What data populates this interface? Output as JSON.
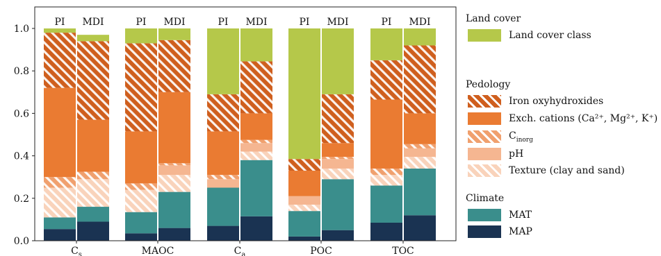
{
  "chart_data": {
    "type": "bar",
    "stacked": true,
    "categories": [
      "Cs",
      "MAOC",
      "Ca",
      "POC",
      "TOC"
    ],
    "category_labels": [
      {
        "main": "C",
        "sub": "s"
      },
      {
        "main": "MAOC",
        "sub": ""
      },
      {
        "main": "C",
        "sub": "a"
      },
      {
        "main": "POC",
        "sub": ""
      },
      {
        "main": "TOC",
        "sub": ""
      }
    ],
    "bar_labels": [
      "PI",
      "MDI"
    ],
    "ylim": [
      0,
      1
    ],
    "yticks": [
      "0.0",
      "0.2",
      "0.4",
      "0.6",
      "0.8",
      "1.0"
    ],
    "grid": false,
    "legend_position": "right",
    "series_order": [
      "MAP",
      "MAT",
      "Texture",
      "pH",
      "Cinorg",
      "Exch",
      "Iron",
      "Land"
    ],
    "series": {
      "MAP": {
        "color": "#1a3352",
        "hatch": false
      },
      "MAT": {
        "color": "#3a8e8c",
        "hatch": false
      },
      "Texture": {
        "color": "#f9d3bb",
        "hatch": true
      },
      "pH": {
        "color": "#f5b691",
        "hatch": false
      },
      "Cinorg": {
        "color": "#f0a06e",
        "hatch": true
      },
      "Exch": {
        "color": "#ea7b32",
        "hatch": false
      },
      "Iron": {
        "color": "#cf5f1e",
        "hatch": true
      },
      "Land": {
        "color": "#b5c84a",
        "hatch": false
      }
    },
    "bars": [
      {
        "category": "Cs",
        "label": "PI",
        "values": {
          "MAP": 0.055,
          "MAT": 0.055,
          "Texture": 0.14,
          "pH": 0.0,
          "Cinorg": 0.05,
          "Exch": 0.42,
          "Iron": 0.26,
          "Land": 0.02
        }
      },
      {
        "category": "Cs",
        "label": "MDI",
        "values": {
          "MAP": 0.09,
          "MAT": 0.07,
          "Texture": 0.13,
          "pH": 0.0,
          "Cinorg": 0.035,
          "Exch": 0.245,
          "Iron": 0.37,
          "Land": 0.03
        }
      },
      {
        "category": "MAOC",
        "label": "PI",
        "values": {
          "MAP": 0.035,
          "MAT": 0.1,
          "Texture": 0.105,
          "pH": 0.0,
          "Cinorg": 0.03,
          "Exch": 0.245,
          "Iron": 0.415,
          "Land": 0.07
        }
      },
      {
        "category": "MAOC",
        "label": "MDI",
        "values": {
          "MAP": 0.06,
          "MAT": 0.17,
          "Texture": 0.08,
          "pH": 0.045,
          "Cinorg": 0.01,
          "Exch": 0.335,
          "Iron": 0.245,
          "Land": 0.055
        }
      },
      {
        "category": "Ca",
        "label": "PI",
        "values": {
          "MAP": 0.07,
          "MAT": 0.18,
          "Texture": 0.0,
          "pH": 0.04,
          "Cinorg": 0.02,
          "Exch": 0.205,
          "Iron": 0.175,
          "Land": 0.31
        }
      },
      {
        "category": "Ca",
        "label": "MDI",
        "values": {
          "MAP": 0.115,
          "MAT": 0.265,
          "Texture": 0.04,
          "pH": 0.04,
          "Cinorg": 0.015,
          "Exch": 0.125,
          "Iron": 0.245,
          "Land": 0.155
        }
      },
      {
        "category": "POC",
        "label": "PI",
        "values": {
          "MAP": 0.02,
          "MAT": 0.12,
          "Texture": 0.03,
          "pH": 0.04,
          "Cinorg": 0.0,
          "Exch": 0.12,
          "Iron": 0.055,
          "Land": 0.615
        }
      },
      {
        "category": "POC",
        "label": "MDI",
        "values": {
          "MAP": 0.05,
          "MAT": 0.24,
          "Texture": 0.05,
          "pH": 0.045,
          "Cinorg": 0.01,
          "Exch": 0.065,
          "Iron": 0.23,
          "Land": 0.31
        }
      },
      {
        "category": "TOC",
        "label": "PI",
        "values": {
          "MAP": 0.085,
          "MAT": 0.175,
          "Texture": 0.05,
          "pH": 0.0,
          "Cinorg": 0.03,
          "Exch": 0.325,
          "Iron": 0.185,
          "Land": 0.15
        }
      },
      {
        "category": "TOC",
        "label": "MDI",
        "values": {
          "MAP": 0.12,
          "MAT": 0.22,
          "Texture": 0.055,
          "pH": 0.04,
          "Cinorg": 0.02,
          "Exch": 0.145,
          "Iron": 0.32,
          "Land": 0.08
        }
      }
    ]
  },
  "legend": {
    "groups": [
      {
        "title": "Land cover",
        "items": [
          {
            "key": "Land",
            "label": "Land cover class"
          }
        ]
      },
      {
        "title": "Pedology",
        "items": [
          {
            "key": "Iron",
            "label": "Iron oxyhydroxides"
          },
          {
            "key": "Exch",
            "label": "Exch. cations (Ca²⁺, Mg²⁺, K⁺)"
          },
          {
            "key": "Cinorg",
            "label": "C",
            "label_sub": "inorg"
          },
          {
            "key": "pH",
            "label": "pH"
          },
          {
            "key": "Texture",
            "label": "Texture (clay and sand)"
          }
        ]
      },
      {
        "title": "Climate",
        "items": [
          {
            "key": "MAT",
            "label": "MAT"
          },
          {
            "key": "MAP",
            "label": "MAP"
          }
        ]
      }
    ]
  }
}
